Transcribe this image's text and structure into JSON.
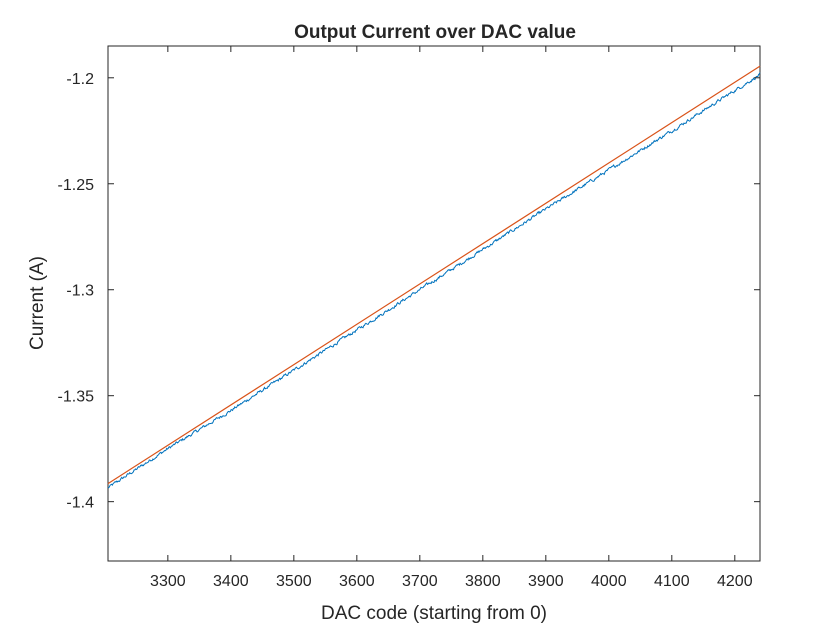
{
  "chart_data": {
    "type": "line",
    "title": "Output Current over DAC value",
    "xlabel": "DAC code (starting from 0)",
    "ylabel": "Current (A)",
    "xlim": [
      3205,
      4240
    ],
    "ylim": [
      -1.428,
      -1.185
    ],
    "xticks": [
      3300,
      3400,
      3500,
      3600,
      3700,
      3800,
      3900,
      4000,
      4100,
      4200
    ],
    "xtick_labels": [
      "3300",
      "3400",
      "3500",
      "3600",
      "3700",
      "3800",
      "3900",
      "4000",
      "4100",
      "4200"
    ],
    "yticks": [
      -1.4,
      -1.35,
      -1.3,
      -1.25,
      -1.2
    ],
    "ytick_labels": [
      "-1.4",
      "-1.35",
      "-1.3",
      "-1.25",
      "-1.2"
    ],
    "grid": false,
    "legend": "none",
    "series": [
      {
        "color": "#0072BD",
        "style": "noisy-measured",
        "x": [
          3205,
          3300,
          3400,
          3500,
          3600,
          3700,
          3800,
          3900,
          4000,
          4100,
          4200,
          4240
        ],
        "y": [
          -1.3935,
          -1.375,
          -1.357,
          -1.338,
          -1.319,
          -1.3,
          -1.281,
          -1.262,
          -1.2435,
          -1.225,
          -1.206,
          -1.1985
        ]
      },
      {
        "color": "#D95319",
        "style": "straight-fit",
        "x": [
          3205,
          4240
        ],
        "y": [
          -1.3915,
          -1.1945
        ]
      }
    ]
  }
}
